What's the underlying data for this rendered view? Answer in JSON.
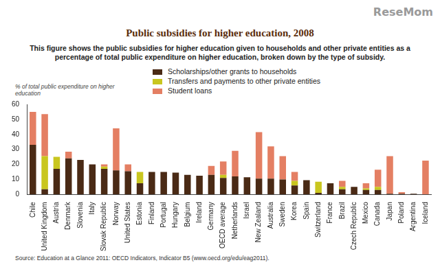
{
  "chart_data": {
    "type": "bar",
    "title": "Public subsidies for higher education, 2008",
    "subtitle": "This figure shows the public subsidies for higher education given to households and other private entities as a percentage of total public expenditure on higher education, broken down by the type of subsidy.",
    "y_label": "% of total public expenditure on higher education",
    "source": "Source: Education at a Glance 2011: OECD Indicators, Indicator B5 (www.oecd.org/edu/eag2011).",
    "annotations": [
      "ReseMom"
    ],
    "stacked": true,
    "grid": false,
    "categories": [
      "Chile",
      "United Kingdom",
      "Austria",
      "Denmark",
      "Slovenia",
      "Italy",
      "Slovak Republic",
      "Norway",
      "United States",
      "Estonia",
      "Finland",
      "Portugal",
      "Hungary",
      "Belgium",
      "Ireland",
      "Germany",
      "OECD average",
      "Netherlands",
      "Israel",
      "New Zealand",
      "Australia",
      "Sweden",
      "Korea",
      "Spain",
      "Switzerland",
      "France",
      "Brazil",
      "Czech Republic",
      "Mexico",
      "Canada",
      "Japan",
      "Poland",
      "Argentina",
      "Iceland"
    ],
    "series": [
      {
        "name": "Scholarships/other grants to households",
        "color": "#4a2a15",
        "values": [
          33,
          3.5,
          17,
          24,
          23,
          20,
          17,
          16,
          15.5,
          7.5,
          15,
          15,
          14.5,
          13,
          12.5,
          13,
          11,
          12,
          11.5,
          10.5,
          10.5,
          10,
          6,
          9.5,
          1,
          7.5,
          3.5,
          5,
          3,
          3,
          0.5,
          0.5,
          0.5,
          0
        ]
      },
      {
        "name": "Transfers and payments to other private entities",
        "color": "#c9c61f",
        "values": [
          0,
          22,
          8,
          0,
          0,
          0,
          1.5,
          0,
          0,
          7.5,
          0,
          0,
          0,
          0,
          0,
          0,
          2,
          0,
          0,
          0,
          0,
          0,
          3,
          0,
          7.5,
          0,
          1.5,
          0,
          1,
          2,
          0,
          0,
          0,
          0
        ]
      },
      {
        "name": "Student loans",
        "color": "#e47f63",
        "values": [
          22,
          28,
          0,
          4.5,
          0,
          0,
          1.5,
          28,
          4.5,
          0,
          0,
          0,
          0,
          0,
          0,
          6,
          9,
          17,
          0,
          31,
          21.5,
          15.5,
          6,
          0,
          0,
          0,
          4,
          0,
          3.5,
          11.5,
          25,
          1,
          0,
          22.5
        ]
      }
    ],
    "ylim": [
      0,
      60
    ],
    "yticks": [
      0,
      10,
      20,
      30,
      40,
      50,
      60
    ]
  }
}
